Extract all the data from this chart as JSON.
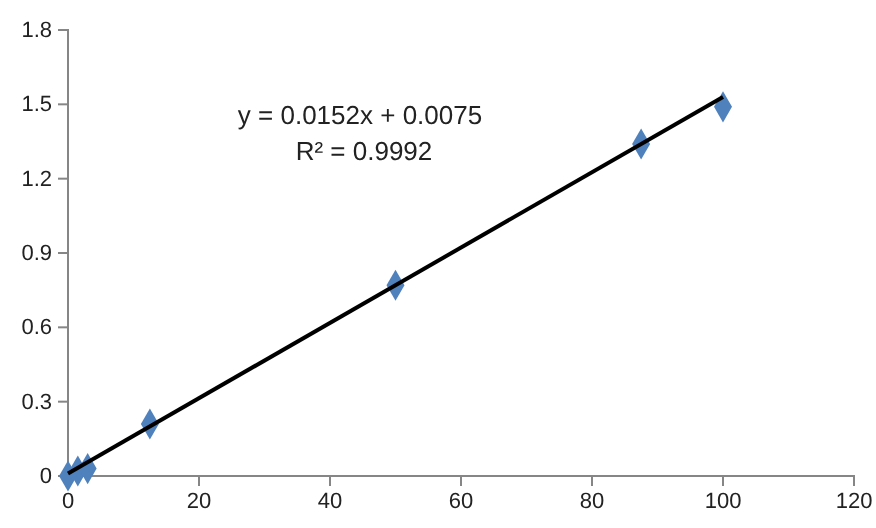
{
  "chart_data": {
    "type": "scatter",
    "series": [
      {
        "color": "#4f81bd",
        "marker": "diamond",
        "x": [
          0,
          1.5,
          3,
          12.5,
          50,
          87.5,
          100
        ],
        "values": [
          0,
          0.02,
          0.03,
          0.21,
          0.77,
          1.34,
          1.49
        ]
      },
      {
        "type": "line",
        "color": "#000000",
        "x": [
          0,
          100
        ],
        "values": [
          0.01,
          1.53
        ]
      }
    ],
    "annotations": [
      "y = 0.0152x + 0.0075",
      "R² = 0.9992"
    ],
    "xlim": [
      0,
      120
    ],
    "xticks": [
      0,
      20,
      40,
      60,
      80,
      100,
      120
    ],
    "ylim": [
      0,
      1.8
    ],
    "yticks": [
      {
        "value": 0,
        "label": "0"
      },
      {
        "value": 0.3,
        "label": "0.3"
      },
      {
        "value": 0.6,
        "label": "0.6"
      },
      {
        "value": 0.9,
        "label": "0.9"
      },
      {
        "value": 1.2,
        "label": "1.2"
      },
      {
        "value": 1.5,
        "label": "1.5"
      },
      {
        "value": 1.8,
        "label": "1.8"
      }
    ]
  }
}
